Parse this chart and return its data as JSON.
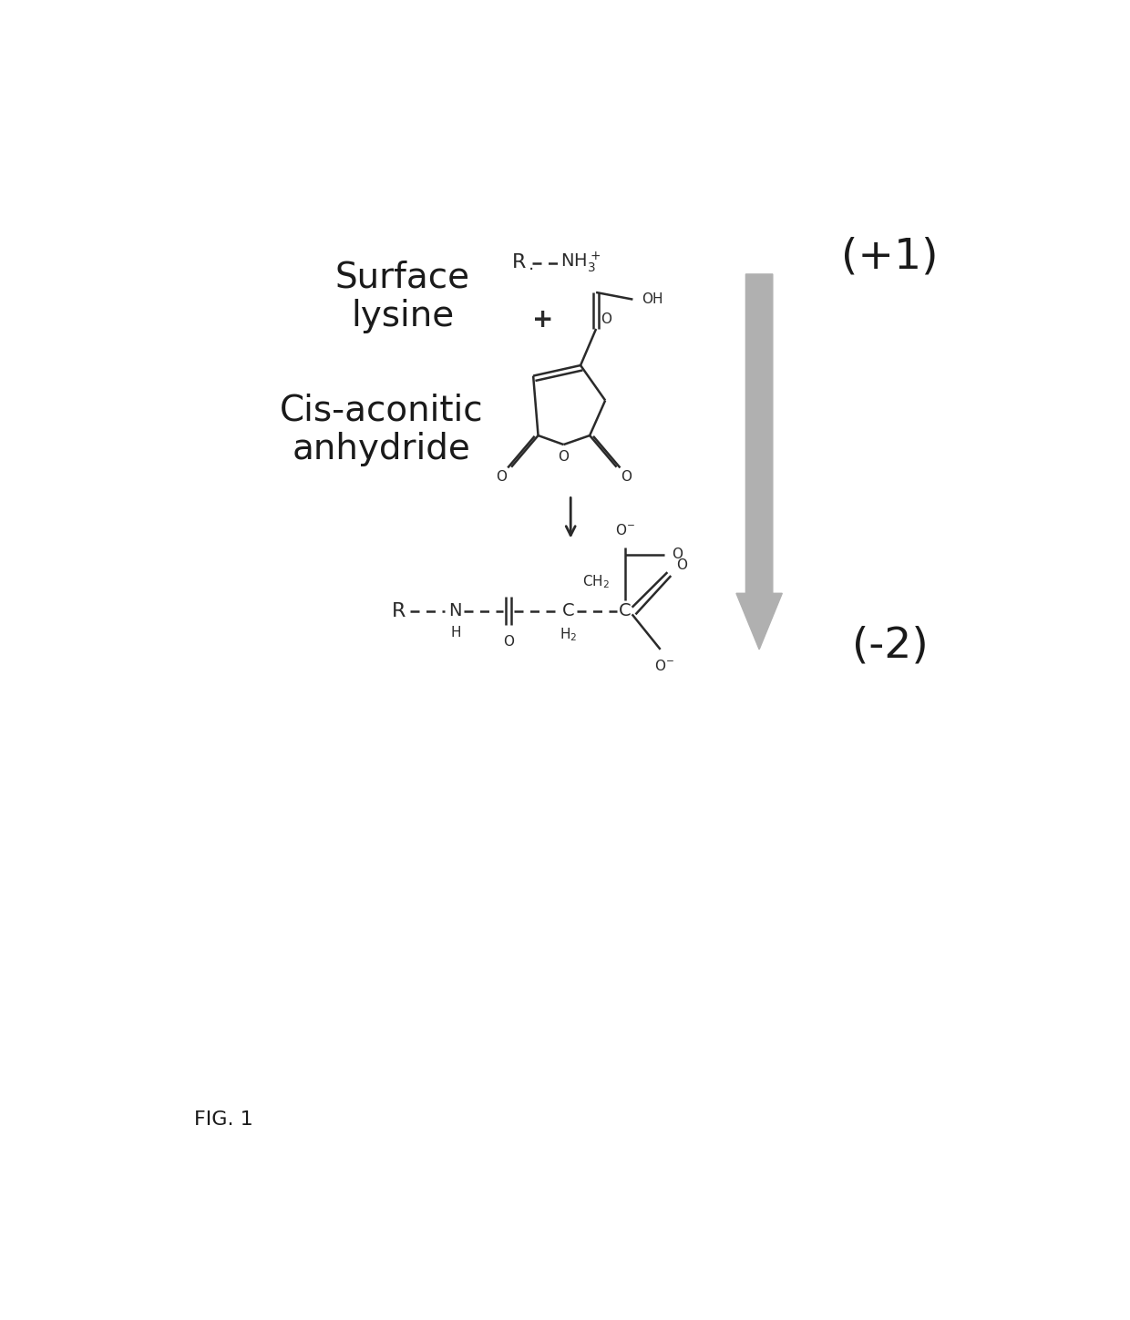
{
  "title": "FIG. 1",
  "label_surface_lysine": "Surface\nlysine",
  "label_cis_aconitic": "Cis-aconitic\nanhydride",
  "charge_top": "(+1)",
  "charge_bottom": "(-2)",
  "bg_color": "#ffffff",
  "text_color": "#1a1a1a",
  "bond_color": "#2a2a2a",
  "arrow_gray": "#b0b0b0",
  "fig_width": 12.4,
  "fig_height": 14.49
}
